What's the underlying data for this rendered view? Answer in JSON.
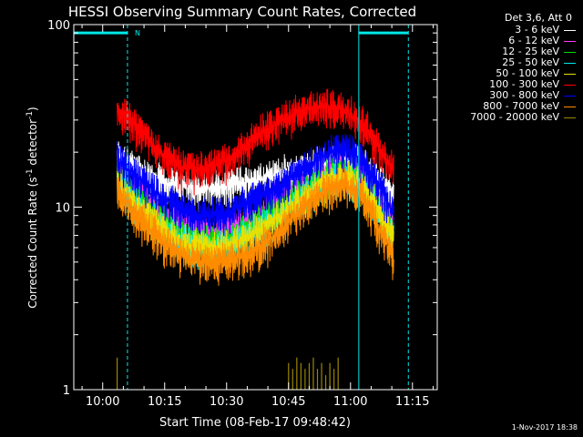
{
  "chart_data": {
    "type": "line",
    "title": "HESSI Observing Summary Count Rates, Corrected",
    "xlabel": "Start Time (08-Feb-17 09:48:42)",
    "ylabel": "Corrected Count Rate (s",
    "ylabel_sup": "-1",
    "ylabel_suffix": " detector",
    "ylabel_sup2": "-1",
    "ylabel_end": ")",
    "y_scale": "log",
    "ylim": [
      1,
      100
    ],
    "xlim_minutes": [
      -7,
      81
    ],
    "y_ticks": [
      {
        "value": 1,
        "label": "1"
      },
      {
        "value": 10,
        "label": "10"
      },
      {
        "value": 100,
        "label": "100"
      }
    ],
    "x_ticks": [
      {
        "minute": 0,
        "label": "10:00"
      },
      {
        "minute": 15,
        "label": "10:15"
      },
      {
        "minute": 30,
        "label": "10:30"
      },
      {
        "minute": 45,
        "label": "10:45"
      },
      {
        "minute": 60,
        "label": "11:00"
      },
      {
        "minute": 75,
        "label": "11:15"
      }
    ],
    "x_unit": "minutes after 10:00",
    "data_range_minutes": [
      3.5,
      70.5
    ],
    "legend_title": "Det 3,6, Att 0",
    "series": [
      {
        "name": "3 - 6 keV",
        "color": "#ffffff",
        "x": [
          3.5,
          8,
          13,
          18,
          23,
          28,
          33,
          38,
          43,
          48,
          53,
          58,
          63,
          67,
          70.5
        ],
        "y": [
          19,
          16,
          14,
          13,
          13,
          13,
          13.5,
          14,
          15,
          16,
          17,
          18,
          17,
          14,
          12
        ]
      },
      {
        "name": "6 - 12 keV",
        "color": "#ff3cff",
        "x": [
          3.5,
          8,
          13,
          18,
          23,
          28,
          33,
          38,
          43,
          48,
          53,
          58,
          63,
          67,
          70.5
        ],
        "y": [
          16,
          12,
          9.5,
          8,
          7.5,
          7.5,
          8,
          9,
          11,
          13,
          15,
          17,
          15,
          11,
          8
        ]
      },
      {
        "name": "12 - 25 keV",
        "color": "#00e000",
        "x": [
          3.5,
          8,
          13,
          18,
          23,
          28,
          33,
          38,
          43,
          48,
          53,
          58,
          63,
          67,
          70.5
        ],
        "y": [
          15,
          11,
          9,
          7,
          6.5,
          6.5,
          7,
          8.5,
          10,
          12,
          14,
          16,
          14,
          10,
          7
        ]
      },
      {
        "name": "25 - 50 keV",
        "color": "#00e8e8",
        "x": [
          3.5,
          8,
          13,
          18,
          23,
          28,
          33,
          38,
          43,
          48,
          53,
          58,
          63,
          67,
          70.5
        ],
        "y": [
          14,
          10,
          8,
          6.5,
          6,
          6,
          6.5,
          7.5,
          9,
          11,
          13,
          15,
          13,
          9.5,
          6.5
        ]
      },
      {
        "name": "50 - 100 keV",
        "color": "#e8e000",
        "x": [
          3.5,
          8,
          13,
          18,
          23,
          28,
          33,
          38,
          43,
          48,
          53,
          58,
          63,
          67,
          70.5
        ],
        "y": [
          14,
          10,
          8,
          6.5,
          6,
          6,
          6.5,
          7.5,
          9,
          11,
          13,
          15,
          13,
          9.5,
          6.5
        ]
      },
      {
        "name": "100 - 300 keV",
        "color": "#ff0000",
        "x": [
          3.5,
          8,
          13,
          18,
          23,
          28,
          33,
          38,
          43,
          48,
          53,
          58,
          63,
          67,
          70.5
        ],
        "y": [
          34,
          28,
          21,
          17,
          16,
          17,
          20,
          25,
          30,
          34,
          36,
          35,
          28,
          21,
          16
        ]
      },
      {
        "name": "300 - 800 keV",
        "color": "#0000ff",
        "x": [
          3.5,
          8,
          13,
          18,
          23,
          28,
          33,
          38,
          43,
          48,
          53,
          58,
          63,
          67,
          70.5
        ],
        "y": [
          18,
          15,
          12,
          10,
          9,
          9,
          10,
          11.5,
          13,
          16,
          19,
          21,
          18,
          13,
          9
        ]
      },
      {
        "name": "800 - 7000 keV",
        "color": "#ff8c00",
        "x": [
          3.5,
          8,
          13,
          18,
          23,
          28,
          33,
          38,
          43,
          48,
          53,
          58,
          63,
          67,
          70.5
        ],
        "y": [
          12.5,
          9,
          7,
          5.5,
          5,
          5,
          5.3,
          6,
          7.5,
          9.5,
          12,
          13.5,
          11,
          7.5,
          5
        ]
      },
      {
        "name": "7000 - 20000 keV",
        "color": "#9a8600",
        "x": [
          3.5,
          45,
          46,
          47,
          48,
          49,
          50,
          51,
          52,
          53,
          54,
          55,
          56,
          57
        ],
        "y": [
          1.5,
          1.4,
          1.3,
          1.5,
          1.4,
          1.3,
          1.4,
          1.5,
          1.3,
          1.4,
          1.2,
          1.4,
          1.3,
          1.5
        ]
      }
    ],
    "annotations": [
      {
        "type": "bar",
        "start_minute": -7,
        "end_minute": 6,
        "value": 90,
        "color": "#00e8e8",
        "label": "N"
      },
      {
        "type": "bar",
        "start_minute": 62,
        "end_minute": 74,
        "value": 90,
        "color": "#00e8e8"
      },
      {
        "type": "vline",
        "minute": 6,
        "style": "dashed",
        "color": "#00e8e8"
      },
      {
        "type": "vline",
        "minute": 62,
        "style": "solid",
        "color": "#00e8e8"
      },
      {
        "type": "vline",
        "minute": 74,
        "style": "dashed",
        "color": "#00e8e8"
      }
    ],
    "footer": "1-Nov-2017 18:38"
  }
}
